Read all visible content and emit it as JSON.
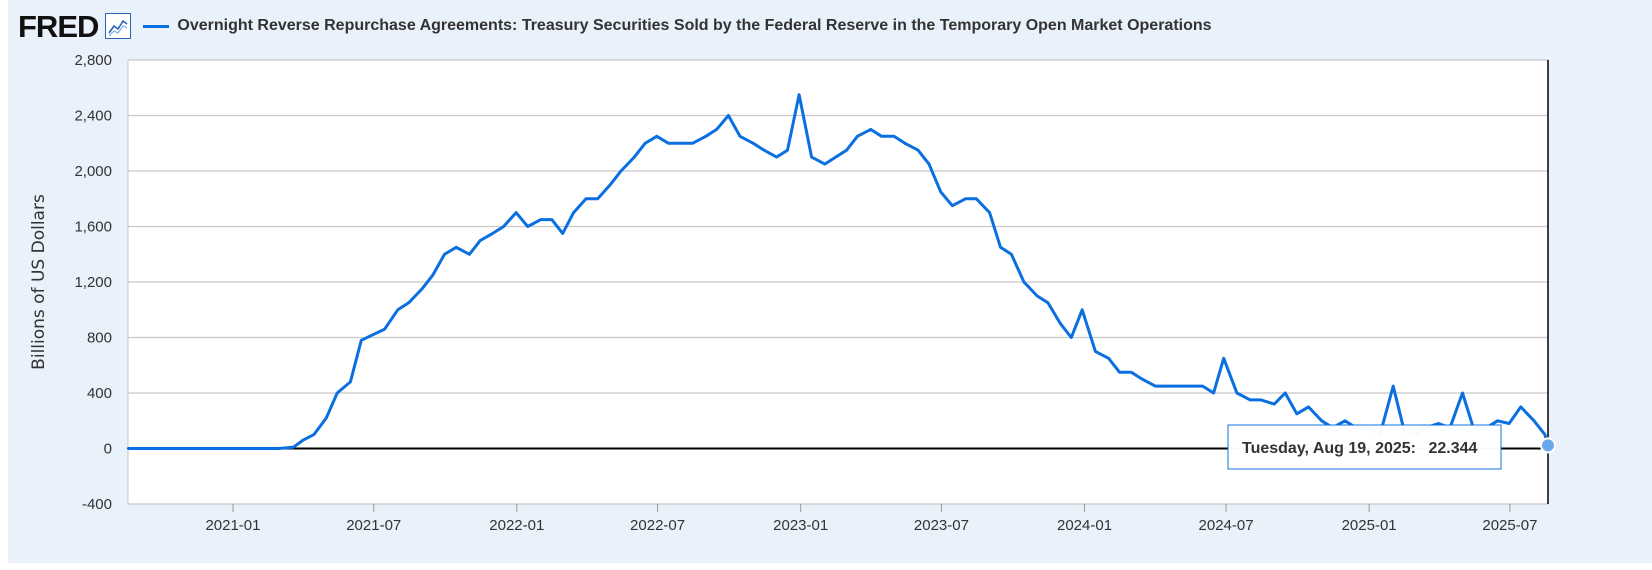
{
  "header": {
    "logo": "FRED",
    "legend_label": "Overnight Reverse Repurchase Agreements: Treasury Securities Sold by the Federal Reserve in the Temporary Open Market Operations"
  },
  "colors": {
    "series": "#0a6fe0",
    "background": "#e9f1fa",
    "grid": "#c8c8c8",
    "zero_line": "#000000"
  },
  "tooltip": {
    "date": "Tuesday, Aug 19, 2025:",
    "value": "22.344"
  },
  "chart_data": {
    "type": "line",
    "title": "",
    "xlabel": "",
    "ylabel": "Billions of US Dollars",
    "ylim": [
      -400,
      2800
    ],
    "yticks": [
      2800,
      2400,
      2000,
      1600,
      1200,
      800,
      400,
      0,
      -400
    ],
    "ytick_labels": [
      "2,800",
      "2,400",
      "2,000",
      "1,600",
      "1,200",
      "800",
      "400",
      "0",
      "-400"
    ],
    "xticks": [
      "2021-01",
      "2021-07",
      "2022-01",
      "2022-07",
      "2023-01",
      "2023-07",
      "2024-01",
      "2024-07",
      "2025-01",
      "2025-07"
    ],
    "xlim": [
      "2020-08-19",
      "2025-08-19"
    ],
    "grid": true,
    "series": [
      {
        "name": "Overnight Reverse Repurchase Agreements: Treasury Securities Sold by the Federal Reserve in the Temporary Open Market Operations",
        "x": [
          "2020-08-19",
          "2020-10-01",
          "2020-12-01",
          "2021-01-15",
          "2021-02-15",
          "2021-03-01",
          "2021-03-20",
          "2021-04-01",
          "2021-04-15",
          "2021-05-01",
          "2021-05-15",
          "2021-06-01",
          "2021-06-15",
          "2021-06-30",
          "2021-07-15",
          "2021-08-01",
          "2021-08-15",
          "2021-09-01",
          "2021-09-15",
          "2021-09-30",
          "2021-10-15",
          "2021-11-01",
          "2021-11-15",
          "2021-12-01",
          "2021-12-15",
          "2021-12-31",
          "2022-01-15",
          "2022-02-01",
          "2022-02-15",
          "2022-03-01",
          "2022-03-15",
          "2022-03-31",
          "2022-04-15",
          "2022-05-01",
          "2022-05-15",
          "2022-06-01",
          "2022-06-15",
          "2022-06-30",
          "2022-07-15",
          "2022-08-01",
          "2022-08-15",
          "2022-09-01",
          "2022-09-15",
          "2022-09-30",
          "2022-10-15",
          "2022-11-01",
          "2022-11-15",
          "2022-12-01",
          "2022-12-15",
          "2022-12-30",
          "2023-01-15",
          "2023-02-01",
          "2023-02-15",
          "2023-03-01",
          "2023-03-15",
          "2023-04-01",
          "2023-04-15",
          "2023-05-01",
          "2023-05-15",
          "2023-06-01",
          "2023-06-15",
          "2023-06-30",
          "2023-07-15",
          "2023-08-01",
          "2023-08-15",
          "2023-09-01",
          "2023-09-15",
          "2023-09-29",
          "2023-10-15",
          "2023-11-01",
          "2023-11-15",
          "2023-12-01",
          "2023-12-15",
          "2023-12-29",
          "2024-01-15",
          "2024-02-01",
          "2024-02-15",
          "2024-03-01",
          "2024-03-15",
          "2024-04-01",
          "2024-04-15",
          "2024-05-01",
          "2024-05-15",
          "2024-06-01",
          "2024-06-15",
          "2024-06-28",
          "2024-07-15",
          "2024-08-01",
          "2024-08-15",
          "2024-09-01",
          "2024-09-15",
          "2024-09-30",
          "2024-10-15",
          "2024-11-01",
          "2024-11-15",
          "2024-12-01",
          "2024-12-15",
          "2024-12-31",
          "2025-01-15",
          "2025-02-01",
          "2025-02-15",
          "2025-03-01",
          "2025-03-15",
          "2025-03-31",
          "2025-04-15",
          "2025-05-01",
          "2025-05-15",
          "2025-06-01",
          "2025-06-15",
          "2025-06-30",
          "2025-07-15",
          "2025-08-01",
          "2025-08-15",
          "2025-08-19"
        ],
        "values": [
          0,
          0,
          0,
          0,
          0,
          0,
          10,
          60,
          100,
          220,
          400,
          480,
          780,
          820,
          860,
          1000,
          1050,
          1150,
          1250,
          1400,
          1450,
          1400,
          1500,
          1550,
          1600,
          1700,
          1600,
          1650,
          1650,
          1550,
          1700,
          1800,
          1800,
          1900,
          2000,
          2100,
          2200,
          2250,
          2200,
          2200,
          2200,
          2250,
          2300,
          2400,
          2250,
          2200,
          2150,
          2100,
          2150,
          2550,
          2100,
          2050,
          2100,
          2150,
          2250,
          2300,
          2250,
          2250,
          2200,
          2150,
          2050,
          1850,
          1750,
          1800,
          1800,
          1700,
          1450,
          1400,
          1200,
          1100,
          1050,
          900,
          800,
          1000,
          700,
          650,
          550,
          550,
          500,
          450,
          450,
          450,
          450,
          450,
          400,
          650,
          400,
          350,
          350,
          320,
          400,
          250,
          300,
          200,
          150,
          200,
          150,
          150,
          100,
          450,
          130,
          100,
          150,
          180,
          150,
          400,
          150,
          150,
          200,
          180,
          300,
          200,
          100,
          22.344
        ]
      }
    ]
  }
}
